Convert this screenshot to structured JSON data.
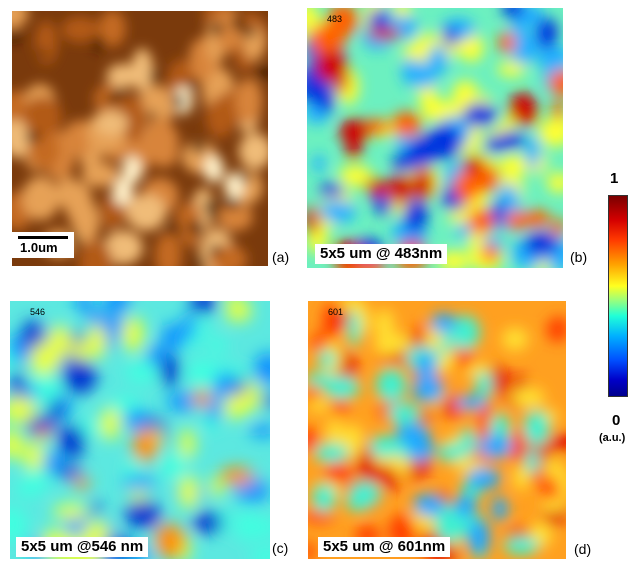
{
  "panels": {
    "a": {
      "letter": "(a)",
      "scale_bar": "1.0um"
    },
    "b": {
      "letter": "(b)",
      "tag": "483",
      "caption": "5x5 um @ 483nm"
    },
    "c": {
      "letter": "(c)",
      "tag": "546",
      "caption": "5x5 um @546 nm"
    },
    "d": {
      "letter": "(d)",
      "tag": "601",
      "caption": "5x5 um @ 601nm"
    }
  },
  "colorbar": {
    "max_label": "1",
    "min_label": "0",
    "unit_label": "(a.u.)",
    "colors": [
      "#7a0000",
      "#ff0000",
      "#ffa000",
      "#ffff20",
      "#20ffd8",
      "#0050ff",
      "#00008c"
    ]
  }
}
